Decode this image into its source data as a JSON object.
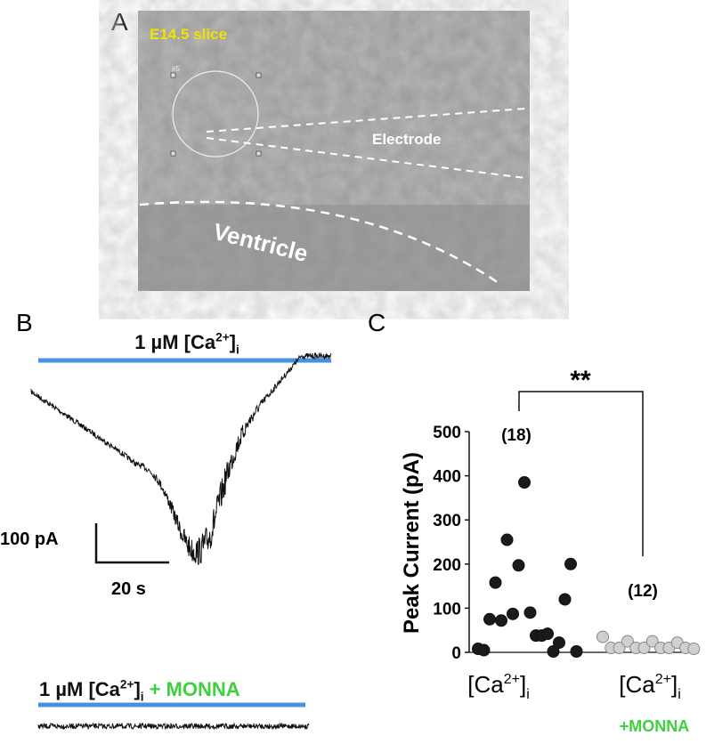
{
  "panel_a": {
    "label": "A",
    "slice": "E14.5 slice",
    "roi": "#5",
    "electrode": "Electrode",
    "ventricle": "Ventricle"
  },
  "panel_b": {
    "label": "B",
    "top_condition": [
      "1 µM [Ca",
      "2+",
      "]",
      "i"
    ],
    "scale_current": "100 pA",
    "scale_time": "20 s",
    "bottom_condition": [
      "1 µM [Ca",
      "2+",
      "]",
      "i",
      "+ MONNA"
    ]
  },
  "chart_data": {
    "type": "scatter",
    "panel_label": "C",
    "y_label": "Peak Current (pA)",
    "categories": [
      [
        "[Ca",
        "2+",
        "]",
        "i"
      ],
      [
        "[Ca",
        "2+",
        "]",
        "i",
        "+MONNA"
      ]
    ],
    "series": [
      {
        "color": "#1a1a1a",
        "values": [
          8,
          5,
          75,
          158,
          72,
          255,
          87,
          197,
          385,
          90,
          38,
          38,
          42,
          2,
          22,
          120,
          200,
          2
        ]
      },
      {
        "color": "#d0d0d0",
        "values": [
          35,
          10,
          10,
          25,
          10,
          10,
          25,
          10,
          10,
          22,
          10,
          8
        ]
      }
    ],
    "counts": [
      "(18)",
      "(12)"
    ],
    "significance": "**",
    "ylim": [
      0,
      500
    ],
    "yticks": [
      0,
      100,
      200,
      300,
      400,
      500
    ]
  }
}
